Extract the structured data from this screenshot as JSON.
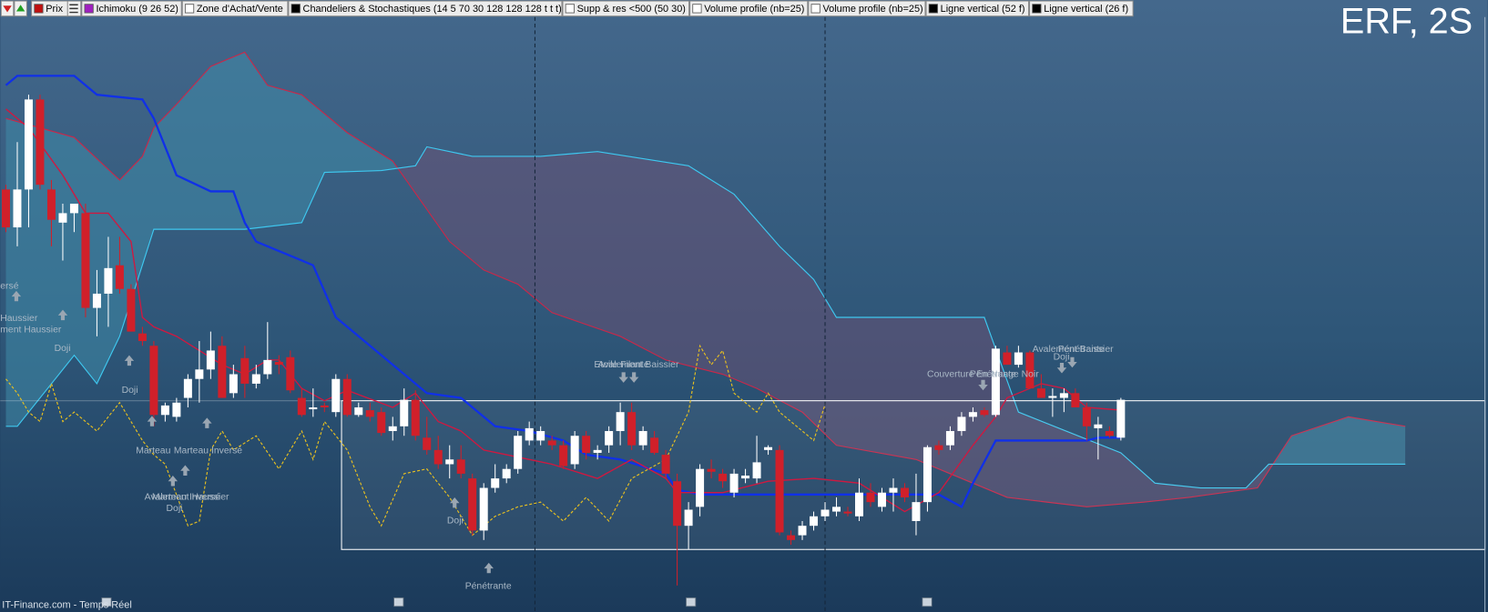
{
  "chart_data": {
    "type": "candlestick",
    "title": "ERF, 2S",
    "source": "IT-Finance.com - Temps Réel",
    "toolbar": [
      "Prix",
      "Ichimoku (9 26 52)",
      "Zone d'Achat/Vente",
      "Chandeliers & Stochastiques (14 5 70 30 128 128 128 t t t)",
      "Supp & res <500 (50 30)",
      "Volume profile (nb=25)",
      "Volume profile (nb=25)",
      "Ligne vertical (52 f)",
      "Ligne vertical (26 f)"
    ],
    "xlim": [
      -0.5,
      130
    ],
    "ylim": [
      0,
      627
    ],
    "up_color": "#ffffff",
    "down_color": "#d0202a",
    "cloud_up_color": "#3f8aa8",
    "cloud_down_color": "#6e4f74",
    "candles": {
      "x": [
        0,
        1,
        2,
        3,
        4,
        5,
        6,
        7,
        8,
        9,
        10,
        11,
        12,
        13,
        14,
        15,
        16,
        17,
        18,
        19,
        20,
        21,
        22,
        23,
        24,
        25,
        26,
        27,
        28,
        29,
        30,
        31,
        32,
        33,
        34,
        35,
        36,
        37,
        38,
        39,
        40,
        41,
        42,
        43,
        44,
        45,
        46,
        47,
        48,
        49,
        50,
        51,
        52,
        53,
        54,
        55,
        56,
        57,
        58,
        59,
        60,
        61,
        62,
        63,
        64,
        65,
        66,
        67,
        68,
        69,
        70,
        71,
        72,
        73,
        74,
        75,
        76,
        77,
        78,
        79,
        80,
        81,
        82,
        83,
        84,
        85,
        86,
        87,
        88,
        89,
        90,
        91,
        92,
        93,
        94,
        95,
        96,
        97,
        98
      ],
      "open": [
        445,
        405,
        445,
        540,
        445,
        410,
        420,
        420,
        320,
        335,
        365,
        340,
        293,
        280,
        207,
        205,
        225,
        245,
        255,
        280,
        230,
        267,
        240,
        250,
        263,
        268,
        225,
        213,
        217,
        210,
        245,
        207,
        212,
        210,
        190,
        195,
        223,
        183,
        170,
        155,
        160,
        140,
        85,
        130,
        140,
        150,
        180,
        180,
        180,
        175,
        155,
        185,
        167,
        175,
        190,
        210,
        175,
        183,
        165,
        137,
        90,
        110,
        150,
        145,
        125,
        140,
        140,
        170,
        170,
        80,
        80,
        90,
        100,
        105,
        105,
        100,
        125,
        110,
        125,
        130,
        95,
        115,
        175,
        175,
        190,
        205,
        212,
        207,
        273,
        260,
        273,
        235,
        225,
        225,
        230,
        215,
        193,
        190,
        183
      ],
      "high": [
        450,
        495,
        545,
        545,
        455,
        430,
        430,
        430,
        360,
        395,
        395,
        345,
        300,
        285,
        220,
        225,
        250,
        285,
        295,
        290,
        260,
        280,
        260,
        305,
        270,
        275,
        235,
        235,
        220,
        250,
        250,
        220,
        220,
        215,
        205,
        235,
        233,
        205,
        185,
        175,
        175,
        145,
        135,
        155,
        155,
        190,
        200,
        195,
        185,
        180,
        190,
        190,
        175,
        195,
        220,
        220,
        195,
        190,
        170,
        145,
        115,
        155,
        160,
        150,
        150,
        150,
        185,
        175,
        175,
        85,
        95,
        105,
        115,
        120,
        110,
        140,
        135,
        130,
        140,
        135,
        145,
        175,
        180,
        195,
        210,
        215,
        215,
        280,
        280,
        280,
        275,
        250,
        235,
        235,
        235,
        220,
        205,
        195,
        225
      ],
      "low": [
        400,
        385,
        405,
        445,
        385,
        370,
        400,
        310,
        290,
        300,
        335,
        295,
        280,
        195,
        200,
        200,
        215,
        220,
        245,
        225,
        225,
        225,
        235,
        245,
        250,
        230,
        205,
        205,
        210,
        205,
        205,
        205,
        200,
        185,
        180,
        185,
        180,
        165,
        150,
        140,
        140,
        80,
        75,
        125,
        135,
        145,
        175,
        175,
        170,
        150,
        150,
        160,
        160,
        167,
        175,
        170,
        170,
        165,
        140,
        27,
        65,
        100,
        140,
        130,
        120,
        135,
        135,
        165,
        80,
        70,
        75,
        85,
        95,
        100,
        100,
        95,
        110,
        105,
        105,
        115,
        80,
        105,
        165,
        170,
        185,
        200,
        205,
        205,
        260,
        257,
        235,
        225,
        205,
        210,
        215,
        180,
        160,
        183,
        180
      ],
      "close": [
        405,
        445,
        540,
        450,
        413,
        420,
        430,
        320,
        335,
        362,
        340,
        295,
        285,
        207,
        217,
        220,
        245,
        255,
        275,
        225,
        250,
        240,
        250,
        265,
        260,
        233,
        207,
        215,
        215,
        245,
        207,
        215,
        205,
        188,
        195,
        223,
        185,
        170,
        155,
        160,
        145,
        85,
        130,
        140,
        150,
        185,
        193,
        190,
        175,
        153,
        185,
        167,
        170,
        190,
        210,
        175,
        190,
        167,
        145,
        90,
        107,
        150,
        147,
        137,
        145,
        143,
        157,
        173,
        83,
        75,
        90,
        100,
        107,
        110,
        103,
        125,
        115,
        125,
        130,
        120,
        115,
        173,
        170,
        190,
        205,
        210,
        207,
        277,
        260,
        273,
        235,
        225,
        227,
        230,
        215,
        195,
        197,
        185,
        223
      ]
    },
    "cloud": {
      "a": {
        "color": "#c8284a",
        "x": [
          0,
          6,
          10,
          12,
          13,
          15,
          18,
          20,
          21,
          23,
          26,
          30,
          34,
          39,
          42,
          45,
          48,
          54,
          58,
          63,
          66,
          70,
          73,
          80,
          85,
          88,
          95,
          100,
          104,
          110,
          113,
          118,
          123
        ],
        "values": [
          520,
          500,
          455,
          480,
          510,
          535,
          575,
          585,
          590,
          555,
          545,
          505,
          475,
          390,
          360,
          345,
          315,
          290,
          265,
          250,
          235,
          210,
          175,
          160,
          135,
          120,
          110,
          115,
          120,
          130,
          185,
          205,
          195
        ]
      },
      "b": {
        "color": "#3ec8f0",
        "x": [
          0,
          1,
          6,
          8,
          10,
          13,
          21,
          26,
          28,
          33,
          36,
          37,
          39,
          41,
          47,
          52,
          60,
          64,
          68,
          71,
          73,
          86,
          89,
          98,
          101,
          105,
          109,
          111,
          123
        ],
        "values": [
          195,
          195,
          270,
          240,
          290,
          403,
          403,
          410,
          463,
          465,
          470,
          490,
          485,
          480,
          480,
          485,
          470,
          440,
          385,
          350,
          310,
          310,
          210,
          167,
          135,
          130,
          130,
          155,
          155
        ]
      }
    },
    "lines": [
      {
        "color": "#1030e8",
        "width": 2.2,
        "dash": false,
        "x": [
          0,
          1,
          6,
          8,
          12,
          13,
          15,
          18,
          20,
          21,
          22,
          26,
          27,
          29,
          32,
          37,
          40,
          43,
          46,
          49,
          51,
          54,
          58,
          59,
          61,
          82,
          84,
          85,
          87,
          95,
          96,
          98
        ],
        "values": [
          555,
          565,
          565,
          545,
          540,
          520,
          460,
          443,
          443,
          410,
          390,
          370,
          365,
          310,
          280,
          230,
          225,
          195,
          190,
          180,
          165,
          160,
          145,
          128,
          123,
          123,
          110,
          135,
          180,
          180,
          183,
          183
        ]
      },
      {
        "color": "#d01840",
        "width": 1.3,
        "dash": false,
        "x": [
          0,
          2,
          5,
          7,
          9,
          11,
          12,
          13,
          15,
          17,
          19,
          21,
          23,
          24,
          26,
          28,
          30,
          34,
          36,
          38,
          40,
          42,
          44,
          48,
          52,
          55,
          58,
          59,
          63,
          67,
          71,
          75,
          79,
          82,
          85,
          87,
          88,
          91,
          93,
          95,
          98
        ],
        "values": [
          530,
          510,
          460,
          420,
          420,
          390,
          310,
          300,
          290,
          275,
          260,
          250,
          265,
          265,
          235,
          222,
          233,
          215,
          230,
          200,
          190,
          170,
          165,
          155,
          140,
          160,
          140,
          125,
          125,
          137,
          140,
          135,
          105,
          125,
          175,
          205,
          225,
          240,
          235,
          215,
          212
        ]
      },
      {
        "color": "#e8c020",
        "width": 1.1,
        "dash": true,
        "x": [
          0,
          1,
          2,
          3,
          4,
          5,
          6,
          8,
          10,
          12,
          13,
          14,
          16,
          17,
          18,
          19,
          20,
          22,
          24,
          26,
          27,
          28,
          30,
          32,
          33,
          35,
          37,
          39,
          41,
          43,
          45,
          47,
          49,
          51,
          53,
          55,
          58,
          60,
          61,
          62,
          63,
          64,
          66,
          67,
          68,
          70,
          71,
          72
        ],
        "values": [
          245,
          230,
          210,
          200,
          240,
          200,
          210,
          190,
          220,
          180,
          165,
          155,
          90,
          95,
          170,
          190,
          170,
          185,
          150,
          190,
          160,
          200,
          170,
          110,
          90,
          145,
          150,
          120,
          80,
          100,
          110,
          115,
          95,
          120,
          95,
          140,
          160,
          210,
          280,
          260,
          275,
          230,
          210,
          230,
          210,
          190,
          180,
          218
        ]
      }
    ],
    "zone": {
      "x0": 29.5,
      "top": 222,
      "bottom": 65
    },
    "vlines": [
      46.5,
      72
    ],
    "annotations": [
      "ersé",
      "Haussier",
      "ment Haussier",
      "Doji",
      "Doji",
      "Marteau",
      "Marteau Inversé",
      "Avalement Haussier",
      "Marteau Inversé",
      "Doji",
      "Doji",
      "Pénétrante",
      "Etoile Filante",
      "Avalement Baissier",
      "Couverture En Nuage Noir",
      "Pénétrante",
      "Avalement Baissier",
      "Pénétrante",
      "Doji"
    ]
  }
}
